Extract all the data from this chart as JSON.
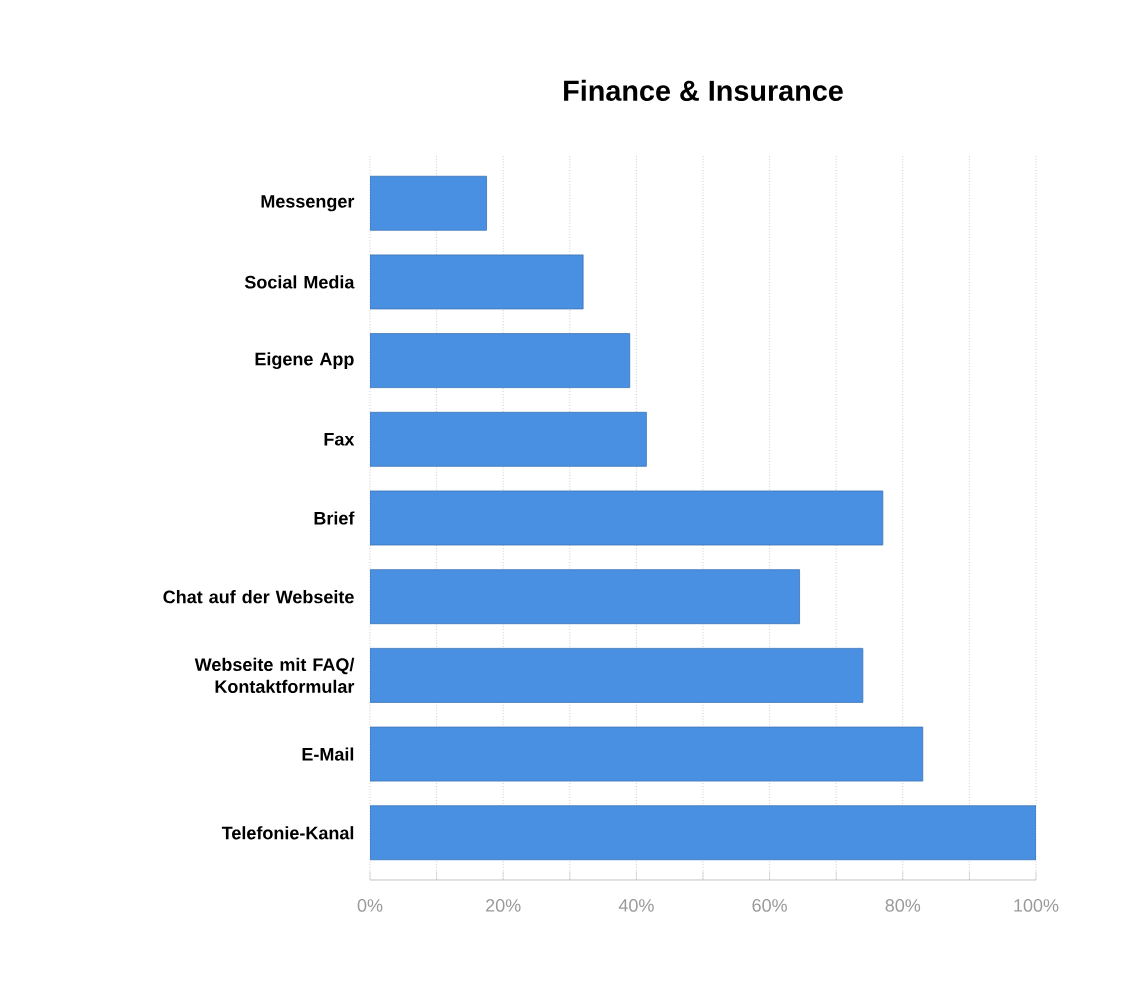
{
  "chart_data": {
    "type": "bar",
    "orientation": "horizontal",
    "title": "Finance & Insurance",
    "categories": [
      "Messenger",
      "Social Media",
      "Eigene App",
      "Fax",
      "Brief",
      "Chat auf der Webseite",
      "Webseite mit FAQ/ Kontaktformular",
      "E-Mail",
      "Telefonie-Kanal"
    ],
    "values": [
      17.5,
      32,
      39,
      41.5,
      77,
      64.5,
      74,
      83,
      100
    ],
    "color": "#4a90e2",
    "xlim": [
      0,
      100
    ],
    "xticks": [
      {
        "value": 0,
        "label": "0%"
      },
      {
        "value": 10,
        "label": null
      },
      {
        "value": 20,
        "label": "20%"
      },
      {
        "value": 30,
        "label": null
      },
      {
        "value": 40,
        "label": "40%"
      },
      {
        "value": 50,
        "label": null
      },
      {
        "value": 60,
        "label": "60%"
      },
      {
        "value": 70,
        "label": null
      },
      {
        "value": 80,
        "label": "80%"
      },
      {
        "value": 90,
        "label": null
      },
      {
        "value": 100,
        "label": "100%"
      }
    ],
    "grid": "x"
  }
}
